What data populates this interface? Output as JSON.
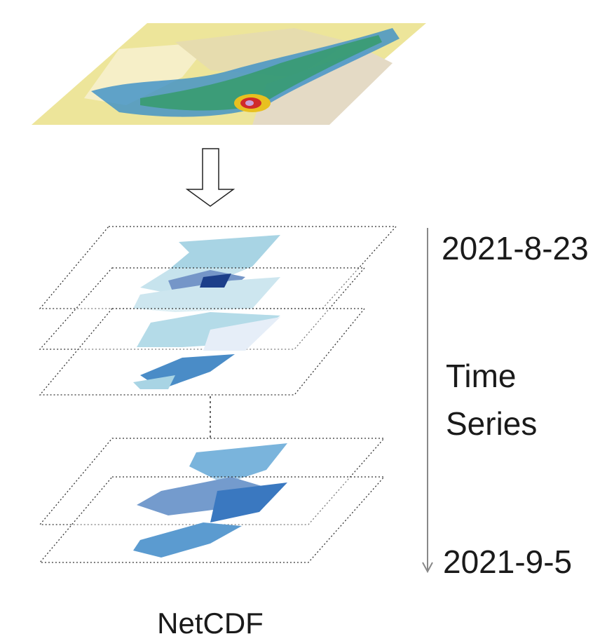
{
  "labels": {
    "start_date": "2021-8-23",
    "time_series": [
      "Time",
      "Series"
    ],
    "end_date": "2021-9-5",
    "format": "NetCDF"
  }
}
